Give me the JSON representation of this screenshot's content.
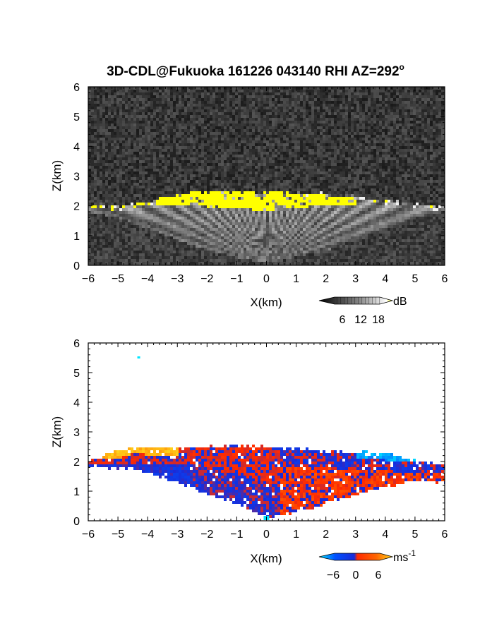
{
  "title": "3D-CDL@Fukuoka 161226 043140 RHI AZ=292",
  "title_superscript": "o",
  "chart_data": [
    {
      "type": "heatmap",
      "panel": "reflectivity",
      "xlabel": "X(km)",
      "ylabel": "Z(km)",
      "xlim": [
        -6,
        6
      ],
      "ylim": [
        0,
        6
      ],
      "xticks": [
        "-6",
        "-5",
        "-4",
        "-3",
        "-2",
        "-1",
        "0",
        "1",
        "2",
        "3",
        "4",
        "5",
        "6"
      ],
      "yticks": [
        "0",
        "1",
        "2",
        "3",
        "4",
        "5",
        "6"
      ],
      "colorbar": {
        "unit": "dB",
        "ticks": [
          "6",
          "12",
          "18"
        ],
        "colors": [
          "#000000",
          "#ffffff",
          "#ffff00"
        ]
      },
      "features": {
        "echo_top_km": [
          [
            -6,
            2.05
          ],
          [
            -5,
            1.98
          ],
          [
            -4.5,
            2.05
          ],
          [
            -3.5,
            2.25
          ],
          [
            -2.5,
            2.45
          ],
          [
            -1,
            2.5
          ],
          [
            0,
            2.45
          ],
          [
            1,
            2.45
          ],
          [
            2,
            2.4
          ],
          [
            3,
            2.3
          ],
          [
            4,
            2.15
          ],
          [
            5,
            2.05
          ],
          [
            6,
            1.95
          ]
        ],
        "noise_floor_km": [
          [
            -6,
            1.8
          ],
          [
            -5,
            1.6
          ],
          [
            -4,
            1.25
          ],
          [
            -3,
            0.85
          ],
          [
            -2,
            0.5
          ],
          [
            0,
            0.05
          ],
          [
            2,
            0.5
          ],
          [
            3,
            0.85
          ],
          [
            4,
            1.25
          ],
          [
            5,
            1.6
          ],
          [
            6,
            1.8
          ]
        ],
        "strong_echo_band_km": [
          [
            -4.5,
            2.0,
            2.15
          ],
          [
            -2.5,
            2.0,
            2.5
          ],
          [
            -1,
            1.9,
            2.5
          ],
          [
            0,
            1.85,
            2.45
          ],
          [
            1,
            1.95,
            2.45
          ],
          [
            2,
            2.0,
            2.35
          ],
          [
            3,
            2.05,
            2.25
          ]
        ]
      }
    },
    {
      "type": "heatmap",
      "panel": "doppler_velocity",
      "xlabel": "X(km)",
      "ylabel": "Z(km)",
      "xlim": [
        -6,
        6
      ],
      "ylim": [
        0,
        6
      ],
      "xticks": [
        "-6",
        "-5",
        "-4",
        "-3",
        "-2",
        "-1",
        "0",
        "1",
        "2",
        "3",
        "4",
        "5",
        "6"
      ],
      "yticks": [
        "0",
        "1",
        "2",
        "3",
        "4",
        "5",
        "6"
      ],
      "colorbar": {
        "unit": "ms",
        "unit_superscript": "-1",
        "ticks": [
          "−6",
          "0",
          "6"
        ],
        "colors": [
          "#00e5ff",
          "#0050ff",
          "#1a2bd8",
          "#ff2a00",
          "#ff6600",
          "#ffd21a"
        ]
      },
      "features": {
        "echo_top_km": [
          [
            -6,
            2.05
          ],
          [
            -4.5,
            2.5
          ],
          [
            -3,
            2.45
          ],
          [
            -1,
            2.55
          ],
          [
            0,
            2.5
          ],
          [
            1,
            2.45
          ],
          [
            2,
            2.35
          ],
          [
            3,
            2.3
          ],
          [
            4,
            2.3
          ],
          [
            5,
            2.0
          ],
          [
            6,
            1.9
          ]
        ],
        "echo_bottom_km": [
          [
            -6,
            1.85
          ],
          [
            -4.5,
            1.8
          ],
          [
            -3,
            1.35
          ],
          [
            -2,
            0.95
          ],
          [
            -1,
            0.6
          ],
          [
            0,
            0.1
          ],
          [
            1,
            0.35
          ],
          [
            2,
            0.6
          ],
          [
            3,
            0.9
          ],
          [
            4,
            1.2
          ],
          [
            5,
            1.4
          ],
          [
            6,
            1.3
          ]
        ],
        "isolated_echo": [
          -4.3,
          5.5
        ]
      }
    }
  ]
}
